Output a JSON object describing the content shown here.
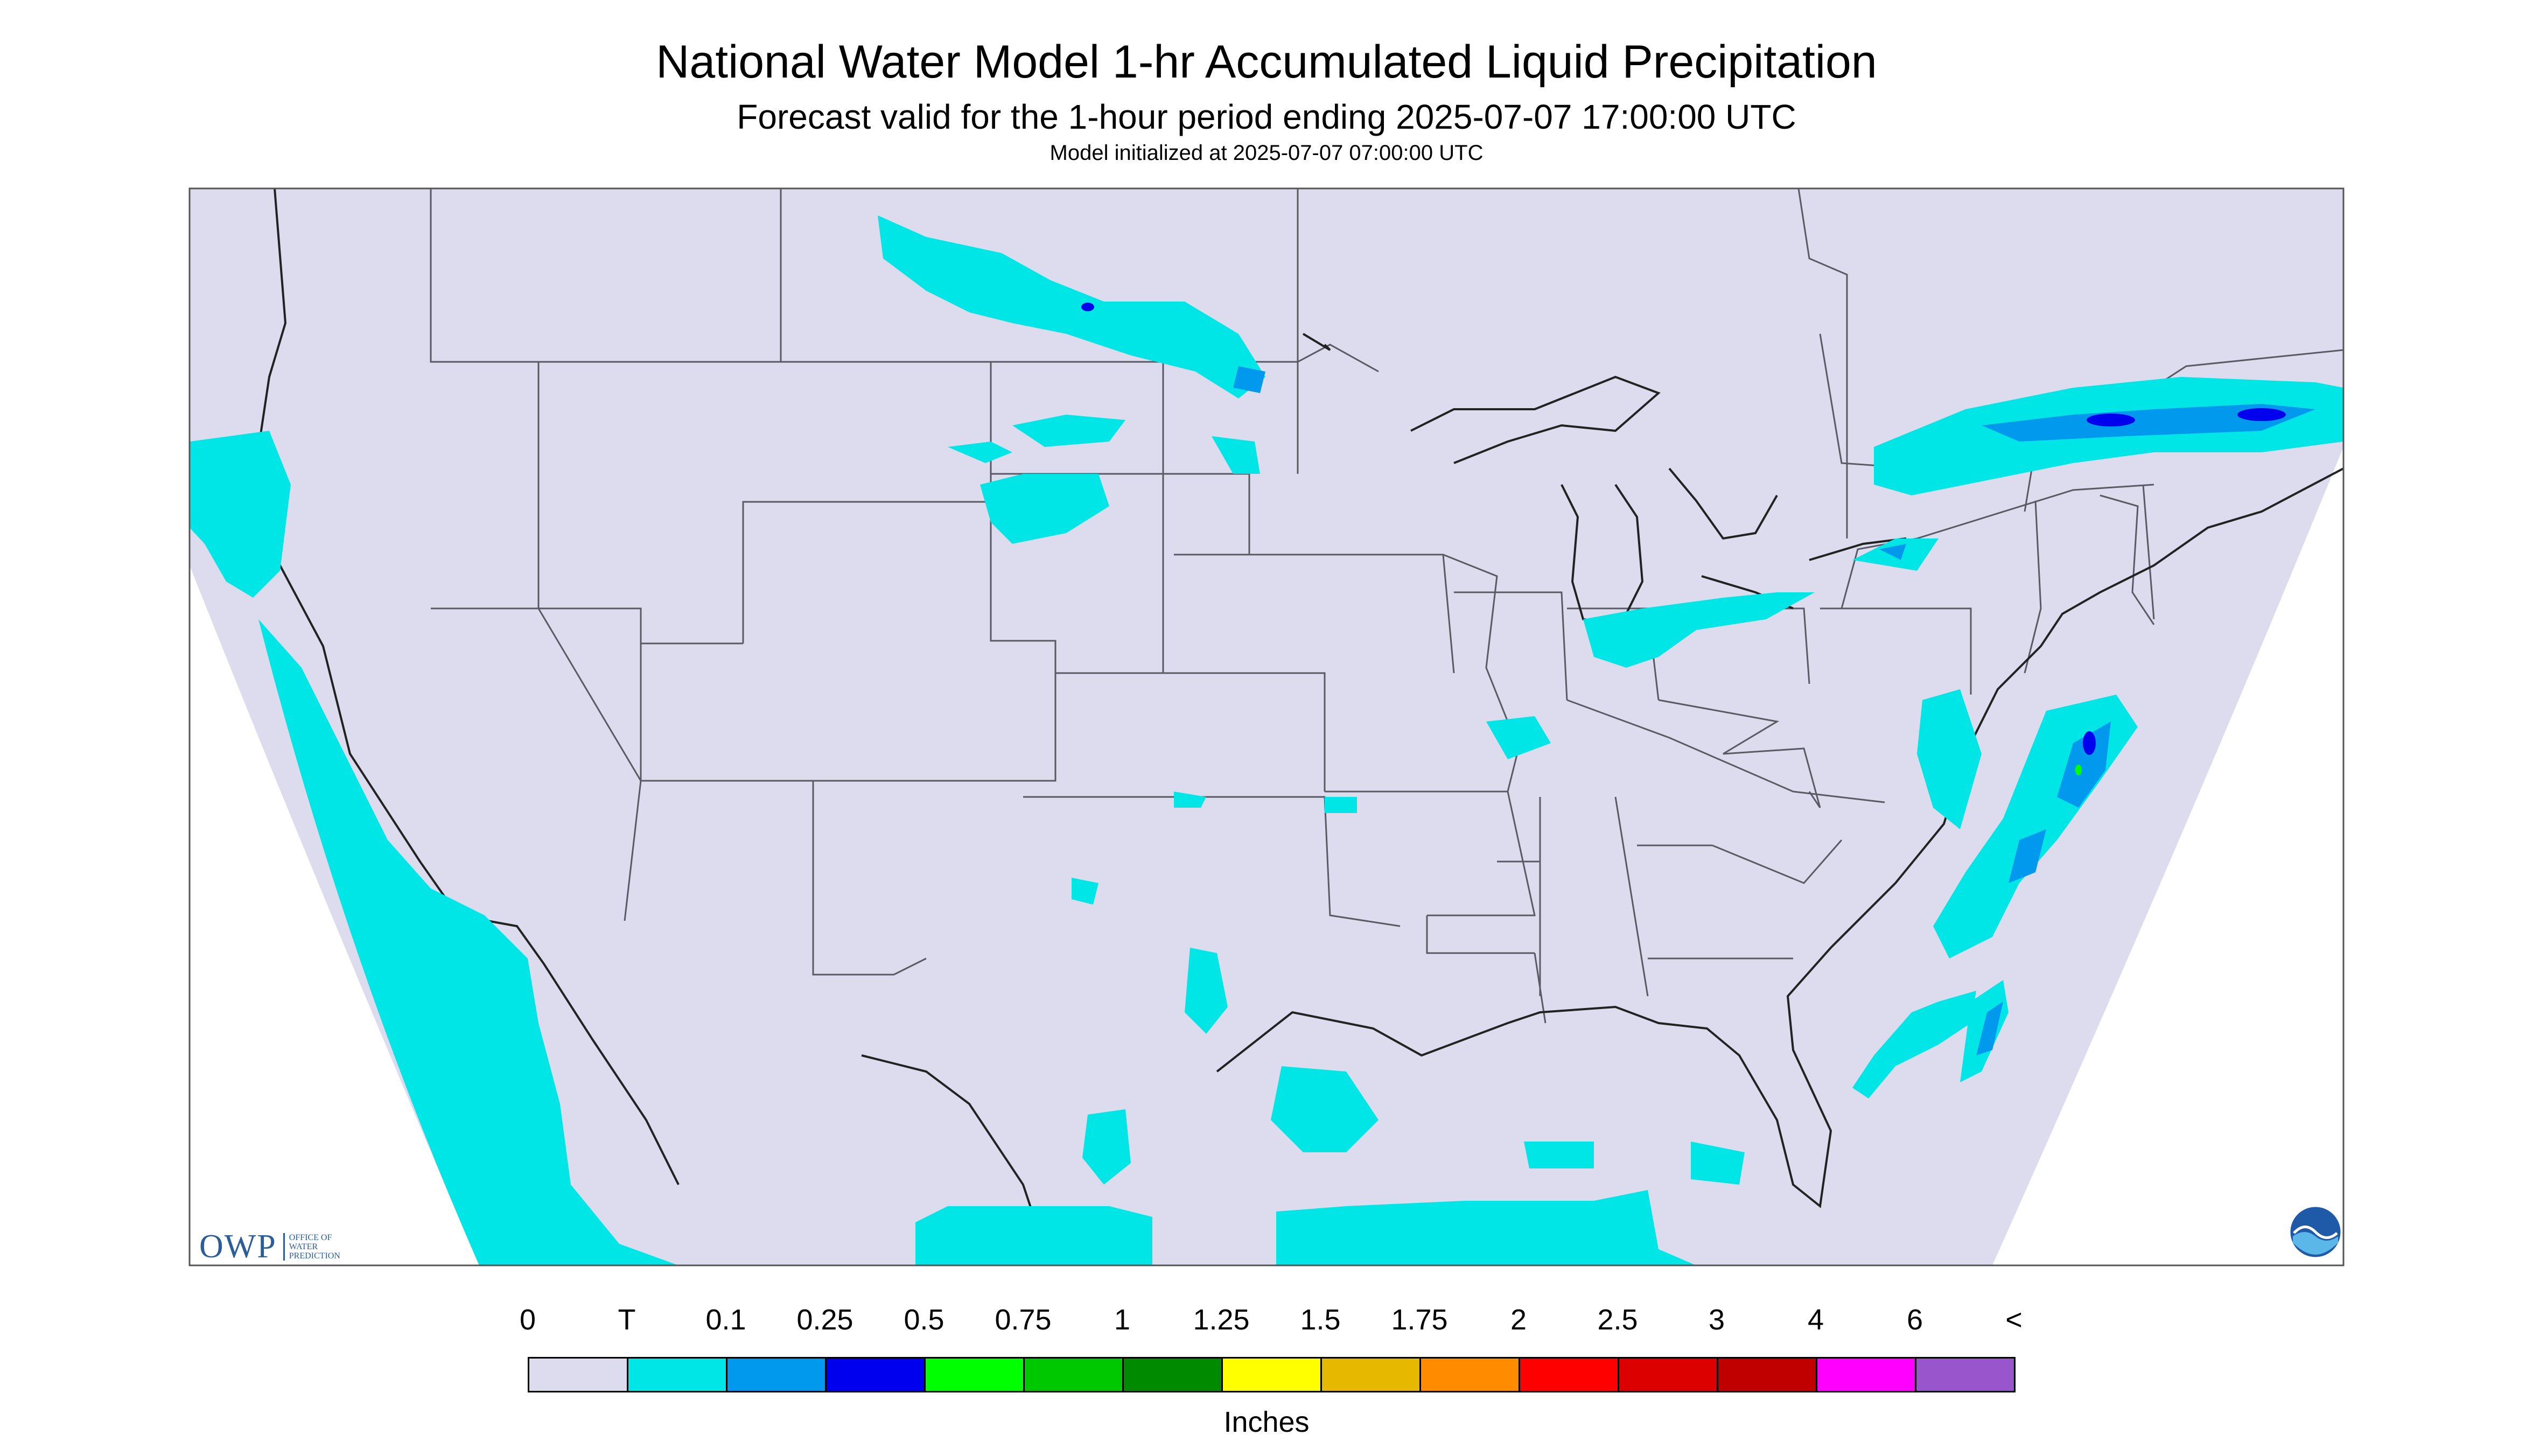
{
  "header": {
    "title": "National Water Model 1-hr Accumulated Liquid Precipitation",
    "subtitle": "Forecast valid for the 1-hour period ending 2025-07-07 17:00:00 UTC",
    "init": "Model initialized at 2025-07-07 07:00:00 UTC"
  },
  "map": {
    "background": "#dcdcee",
    "outside": "#ffffff",
    "region": "Contiguous United States"
  },
  "legend": {
    "labels": [
      "0",
      "T",
      "0.1",
      "0.25",
      "0.5",
      "0.75",
      "1",
      "1.25",
      "1.5",
      "1.75",
      "2",
      "2.5",
      "3",
      "4",
      "6",
      "<"
    ],
    "colors": [
      "#dcdcee",
      "#00e5e5",
      "#0099ee",
      "#0000ee",
      "#00ff00",
      "#00c800",
      "#008a00",
      "#ffff00",
      "#e6b800",
      "#ff8c00",
      "#ff0000",
      "#dd0000",
      "#c00000",
      "#ff00ff",
      "#9955cc"
    ],
    "units": "Inches"
  },
  "logos": {
    "owp_mark": "OWP",
    "owp_text": "OFFICE OF WATER PREDICTION",
    "noaa_text": "NOAA"
  }
}
